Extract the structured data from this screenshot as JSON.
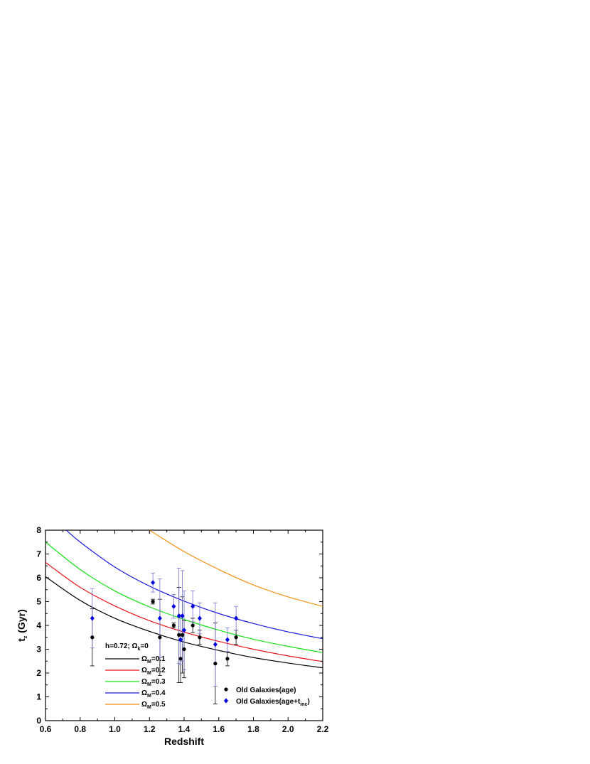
{
  "chart_data": {
    "type": "scatter",
    "xlabel": "Redshift",
    "ylabel": {
      "main": "t",
      "sub": "z",
      "rest": " (Gyr)"
    },
    "xlim": [
      0.6,
      2.2
    ],
    "ylim": [
      0,
      8
    ],
    "xticks": [
      0.6,
      0.8,
      1.0,
      1.2,
      1.4,
      1.6,
      1.8,
      2.0,
      2.2
    ],
    "xtick_labels": [
      "0.6",
      "0.8",
      "1.0",
      "1.2",
      "1.4",
      "1.6",
      "1.8",
      "2.0",
      "2.2"
    ],
    "yticks": [
      0,
      1,
      2,
      3,
      4,
      5,
      6,
      7,
      8
    ],
    "ytick_labels": [
      "0",
      "1",
      "2",
      "3",
      "4",
      "5",
      "6",
      "7",
      "8"
    ],
    "grid": false,
    "model_label": {
      "text": "h=0.72; ",
      "omega": "Ω",
      "sub": "k",
      "rest": "=0"
    },
    "curves": [
      {
        "name": {
          "omega": "Ω",
          "sub": "M",
          "rest": "=0.1"
        },
        "color": "#000000",
        "x": [
          0.6,
          0.8,
          1.0,
          1.2,
          1.4,
          1.6,
          1.8,
          2.0,
          2.2
        ],
        "y": [
          6.05,
          5.05,
          4.3,
          3.75,
          3.3,
          2.95,
          2.65,
          2.42,
          2.22
        ]
      },
      {
        "name": {
          "omega": "Ω",
          "sub": "M",
          "rest": "=0.2"
        },
        "color": "#e8141c",
        "x": [
          0.6,
          0.8,
          1.0,
          1.2,
          1.4,
          1.6,
          1.8,
          2.0,
          2.2
        ],
        "y": [
          6.65,
          5.6,
          4.82,
          4.2,
          3.72,
          3.33,
          3.0,
          2.72,
          2.48
        ]
      },
      {
        "name": {
          "omega": "Ω",
          "sub": "M",
          "rest": "=0.3"
        },
        "color": "#12e012",
        "x": [
          0.6,
          0.8,
          1.0,
          1.2,
          1.4,
          1.6,
          1.8,
          2.0,
          2.2
        ],
        "y": [
          7.5,
          6.35,
          5.45,
          4.78,
          4.25,
          3.8,
          3.42,
          3.12,
          2.86
        ]
      },
      {
        "name": {
          "omega": "Ω",
          "sub": "M",
          "rest": "=0.4"
        },
        "color": "#1a1adf",
        "x": [
          0.72,
          0.8,
          1.0,
          1.2,
          1.4,
          1.6,
          1.8,
          2.0,
          2.2
        ],
        "y": [
          8.0,
          7.5,
          6.45,
          5.65,
          5.02,
          4.5,
          4.08,
          3.73,
          3.44
        ]
      },
      {
        "name": {
          "omega": "Ω",
          "sub": "M",
          "rest": "=0.5"
        },
        "color": "#f0900f",
        "x": [
          1.2,
          1.4,
          1.6,
          1.8,
          2.0,
          2.2
        ],
        "y": [
          8.0,
          7.1,
          6.35,
          5.7,
          5.2,
          4.8
        ]
      }
    ],
    "series": [
      {
        "name": "Old Galaxies(age)",
        "marker": "circle",
        "color": "#000000",
        "error_color": "#000000",
        "x": [
          0.87,
          1.22,
          1.26,
          1.34,
          1.37,
          1.38,
          1.39,
          1.4,
          1.45,
          1.49,
          1.58,
          1.65,
          1.7
        ],
        "y": [
          3.5,
          5.0,
          3.5,
          4.0,
          3.6,
          2.6,
          3.6,
          3.0,
          4.0,
          3.5,
          2.4,
          2.6,
          3.5
        ],
        "err": [
          1.2,
          0.1,
          1.6,
          0.1,
          2.0,
          1.0,
          1.6,
          1.2,
          0.3,
          0.3,
          1.7,
          0.3,
          0.3
        ]
      },
      {
        "name": {
          "text": "Old Galaxies(age+t",
          "sub": "inc",
          "rest": ")"
        },
        "marker": "diamond",
        "color": "#0000e0",
        "error_color": "#7474cc",
        "x": [
          0.87,
          1.22,
          1.26,
          1.34,
          1.37,
          1.38,
          1.39,
          1.4,
          1.45,
          1.49,
          1.58,
          1.65,
          1.7
        ],
        "y": [
          4.3,
          5.8,
          4.3,
          4.8,
          4.4,
          3.4,
          4.4,
          3.8,
          4.8,
          4.3,
          3.2,
          3.4,
          4.3
        ],
        "err": [
          1.25,
          0.4,
          1.65,
          0.5,
          2.0,
          1.05,
          1.9,
          1.65,
          0.65,
          0.65,
          1.75,
          0.5,
          0.5
        ]
      }
    ]
  }
}
